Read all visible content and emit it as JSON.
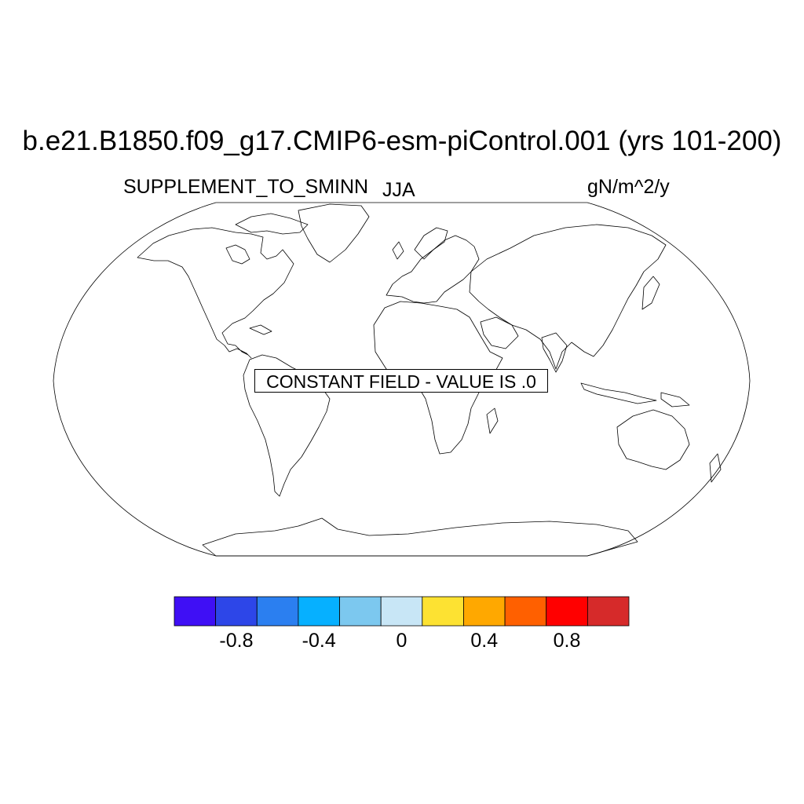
{
  "title": "b.e21.B1850.f09_g17.CMIP6-esm-piControl.001 (yrs 101-200)",
  "variable": "SUPPLEMENT_TO_SMINN",
  "season": "JJA",
  "units": "gN/m^2/y",
  "map": {
    "projection": "Robinson",
    "coastlines": true,
    "message": "CONSTANT FIELD - VALUE IS .0"
  },
  "colorbar": {
    "colors": [
      "#3f0ff5",
      "#2d46e8",
      "#2b7ff0",
      "#06b0ff",
      "#7cc8ef",
      "#c8e6f6",
      "#fde232",
      "#ffa800",
      "#ff6000",
      "#ff0000",
      "#d62a2a"
    ],
    "tick_labels": [
      "-0.8",
      "-0.4",
      "0",
      "0.4",
      "0.8"
    ]
  }
}
